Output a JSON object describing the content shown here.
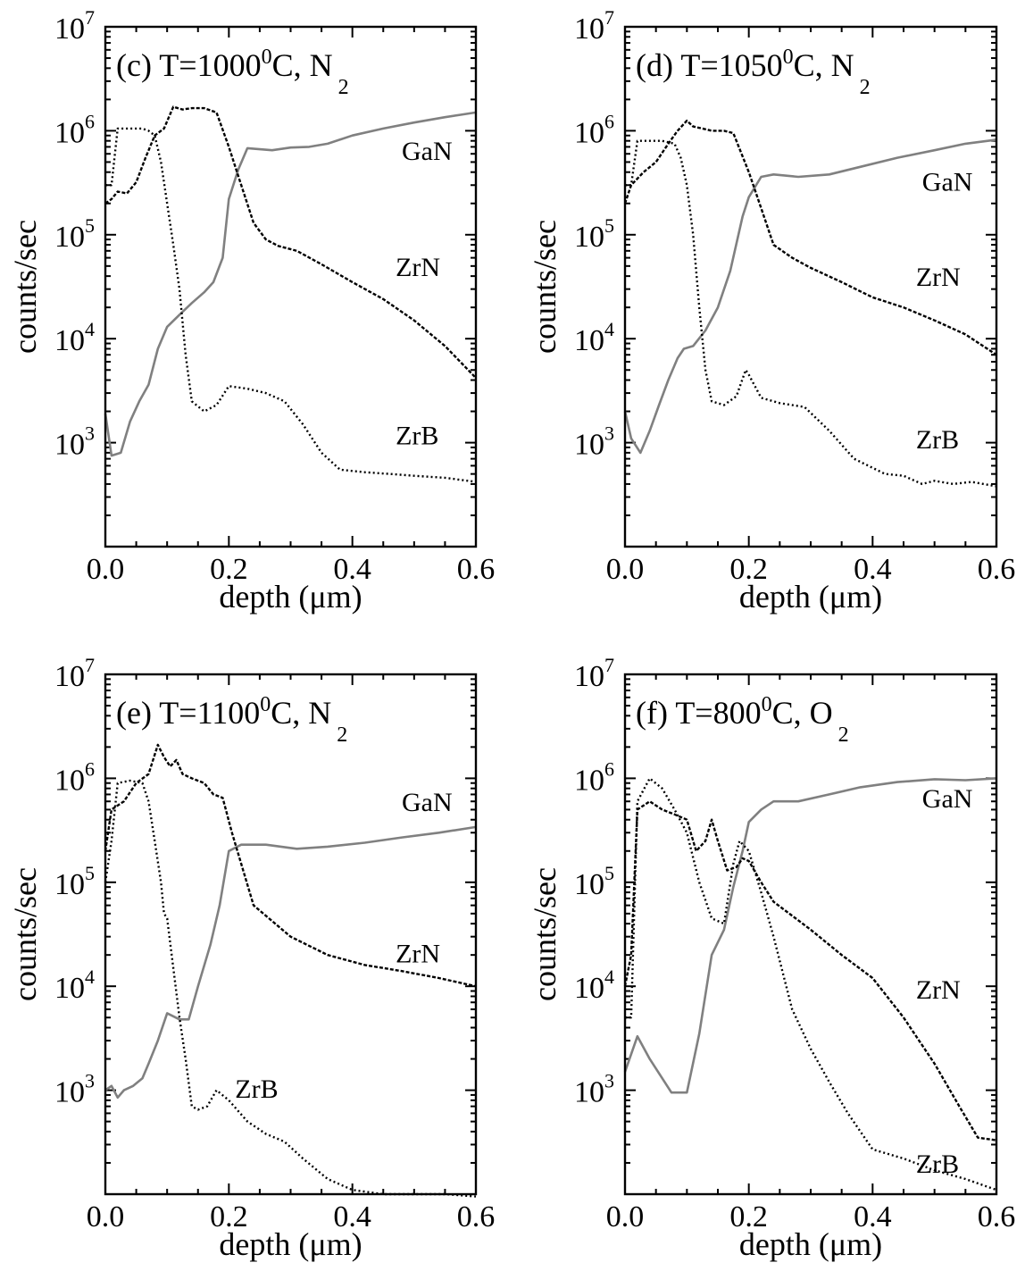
{
  "figure": {
    "ylabel": "counts/sec",
    "xlabel": "depth (μm)"
  },
  "chart_data": [
    {
      "type": "line",
      "panel": "(c)",
      "title": {
        "pre": "(c) T=1000",
        "sup": "0",
        "mid": "C, N",
        "sub": "2"
      },
      "xlabel": "depth (μm)",
      "ylabel": "counts/sec",
      "xlim": [
        0,
        0.6
      ],
      "ylim": [
        100,
        10000000
      ],
      "yscale": "log",
      "xticks": [
        "0.0",
        "0.2",
        "0.4",
        "0.6"
      ],
      "yticks": [
        {
          "base": "10",
          "exp": "3"
        },
        {
          "base": "10",
          "exp": "4"
        },
        {
          "base": "10",
          "exp": "5"
        },
        {
          "base": "10",
          "exp": "6"
        },
        {
          "base": "10",
          "exp": "7"
        }
      ],
      "series": [
        {
          "name": "GaN",
          "style": "solid",
          "color": "#808080",
          "x": [
            0,
            0.01,
            0.025,
            0.04,
            0.055,
            0.07,
            0.085,
            0.1,
            0.12,
            0.14,
            0.16,
            0.175,
            0.19,
            0.2,
            0.215,
            0.23,
            0.27,
            0.3,
            0.33,
            0.36,
            0.4,
            0.45,
            0.5,
            0.55,
            0.6
          ],
          "y": [
            1900,
            750,
            800,
            1600,
            2500,
            3600,
            8000,
            13000,
            17000,
            22000,
            28000,
            35000,
            60000,
            220000,
            420000,
            680000,
            650000,
            690000,
            700000,
            750000,
            900000,
            1050000,
            1200000,
            1350000,
            1500000
          ]
        },
        {
          "name": "ZrN",
          "style": "dashed",
          "color": "#000000",
          "x": [
            0,
            0.01,
            0.02,
            0.035,
            0.05,
            0.065,
            0.08,
            0.095,
            0.11,
            0.125,
            0.14,
            0.16,
            0.18,
            0.2,
            0.22,
            0.24,
            0.26,
            0.28,
            0.31,
            0.35,
            0.4,
            0.45,
            0.5,
            0.55,
            0.6
          ],
          "y": [
            200000,
            220000,
            260000,
            250000,
            320000,
            550000,
            900000,
            1050000,
            1700000,
            1600000,
            1650000,
            1650000,
            1500000,
            700000,
            300000,
            130000,
            90000,
            78000,
            70000,
            52000,
            35000,
            24000,
            15000,
            8500,
            4200
          ]
        },
        {
          "name": "ZrB",
          "style": "dotted",
          "color": "#000000",
          "x": [
            0,
            0.01,
            0.02,
            0.04,
            0.06,
            0.07,
            0.08,
            0.09,
            0.1,
            0.11,
            0.12,
            0.13,
            0.14,
            0.16,
            0.18,
            0.2,
            0.23,
            0.26,
            0.29,
            0.32,
            0.35,
            0.38,
            0.42,
            0.46,
            0.5,
            0.55,
            0.6
          ],
          "y": [
            300000,
            300000,
            1050000,
            1050000,
            1050000,
            1000000,
            900000,
            500000,
            200000,
            80000,
            30000,
            7000,
            2500,
            2000,
            2300,
            3500,
            3300,
            3000,
            2500,
            1500,
            800,
            550,
            520,
            500,
            480,
            460,
            420
          ]
        }
      ],
      "labels": [
        {
          "text": "GaN",
          "x": 0.48,
          "y": 650000
        },
        {
          "text": "ZrN",
          "x": 0.47,
          "y": 50000
        },
        {
          "text": "ZrB",
          "x": 0.47,
          "y": 1200
        }
      ]
    },
    {
      "type": "line",
      "panel": "(d)",
      "title": {
        "pre": "(d) T=1050",
        "sup": "0",
        "mid": "C, N",
        "sub": "2"
      },
      "xlabel": "depth (μm)",
      "ylabel": "counts/sec",
      "xlim": [
        0,
        0.6
      ],
      "ylim": [
        100,
        10000000
      ],
      "yscale": "log",
      "xticks": [
        "0.0",
        "0.2",
        "0.4",
        "0.6"
      ],
      "yticks": [
        {
          "base": "10",
          "exp": "3"
        },
        {
          "base": "10",
          "exp": "4"
        },
        {
          "base": "10",
          "exp": "5"
        },
        {
          "base": "10",
          "exp": "6"
        },
        {
          "base": "10",
          "exp": "7"
        }
      ],
      "series": [
        {
          "name": "GaN",
          "style": "solid",
          "color": "#808080",
          "x": [
            0,
            0.01,
            0.025,
            0.04,
            0.055,
            0.07,
            0.085,
            0.095,
            0.11,
            0.13,
            0.15,
            0.17,
            0.19,
            0.2,
            0.22,
            0.24,
            0.28,
            0.33,
            0.38,
            0.44,
            0.5,
            0.55,
            0.6
          ],
          "y": [
            2000,
            1100,
            800,
            1300,
            2300,
            4000,
            6500,
            8000,
            8500,
            12000,
            20000,
            45000,
            150000,
            230000,
            360000,
            380000,
            360000,
            380000,
            450000,
            550000,
            650000,
            750000,
            820000
          ]
        },
        {
          "name": "ZrN",
          "style": "dashed",
          "color": "#000000",
          "x": [
            0,
            0.01,
            0.03,
            0.05,
            0.07,
            0.085,
            0.1,
            0.11,
            0.125,
            0.14,
            0.16,
            0.175,
            0.2,
            0.22,
            0.24,
            0.27,
            0.3,
            0.35,
            0.4,
            0.45,
            0.5,
            0.55,
            0.6
          ],
          "y": [
            200000,
            300000,
            400000,
            500000,
            750000,
            1000000,
            1250000,
            1100000,
            1050000,
            1000000,
            1000000,
            950000,
            400000,
            180000,
            80000,
            60000,
            48000,
            35000,
            25000,
            20000,
            15000,
            11000,
            7000
          ]
        },
        {
          "name": "ZrB",
          "style": "dotted",
          "color": "#000000",
          "x": [
            0,
            0.01,
            0.02,
            0.04,
            0.06,
            0.08,
            0.09,
            0.1,
            0.11,
            0.12,
            0.13,
            0.14,
            0.16,
            0.18,
            0.195,
            0.2,
            0.22,
            0.25,
            0.29,
            0.33,
            0.37,
            0.42,
            0.45,
            0.48,
            0.5,
            0.53,
            0.56,
            0.6
          ],
          "y": [
            300000,
            300000,
            800000,
            800000,
            800000,
            750000,
            550000,
            300000,
            100000,
            20000,
            5000,
            2500,
            2300,
            2800,
            5000,
            4500,
            2700,
            2400,
            2200,
            1300,
            700,
            500,
            480,
            400,
            430,
            400,
            420,
            380
          ]
        }
      ],
      "labels": [
        {
          "text": "GaN",
          "x": 0.48,
          "y": 330000
        },
        {
          "text": "ZrN",
          "x": 0.47,
          "y": 40000
        },
        {
          "text": "ZrB",
          "x": 0.47,
          "y": 1100
        }
      ]
    },
    {
      "type": "line",
      "panel": "(e)",
      "title": {
        "pre": "(e)  T=1100",
        "sup": "0",
        "mid": "C, N",
        "sub": "2"
      },
      "xlabel": "depth (μm)",
      "ylabel": "counts/sec",
      "xlim": [
        0,
        0.6
      ],
      "ylim": [
        100,
        10000000
      ],
      "yscale": "log",
      "xticks": [
        "0.0",
        "0.2",
        "0.4",
        "0.6"
      ],
      "yticks": [
        {
          "base": "10",
          "exp": "3"
        },
        {
          "base": "10",
          "exp": "4"
        },
        {
          "base": "10",
          "exp": "5"
        },
        {
          "base": "10",
          "exp": "6"
        },
        {
          "base": "10",
          "exp": "7"
        }
      ],
      "series": [
        {
          "name": "GaN",
          "style": "solid",
          "color": "#808080",
          "x": [
            0,
            0.01,
            0.02,
            0.03,
            0.045,
            0.06,
            0.07,
            0.085,
            0.1,
            0.12,
            0.135,
            0.15,
            0.17,
            0.185,
            0.2,
            0.22,
            0.26,
            0.31,
            0.36,
            0.42,
            0.48,
            0.54,
            0.6
          ],
          "y": [
            1000,
            1100,
            850,
            1000,
            1100,
            1300,
            1800,
            3000,
            5500,
            4800,
            4800,
            10000,
            25000,
            60000,
            200000,
            230000,
            230000,
            210000,
            220000,
            240000,
            270000,
            300000,
            340000
          ]
        },
        {
          "name": "ZrN",
          "style": "dashed",
          "color": "#000000",
          "x": [
            0,
            0.01,
            0.03,
            0.05,
            0.07,
            0.085,
            0.095,
            0.105,
            0.115,
            0.125,
            0.14,
            0.16,
            0.175,
            0.19,
            0.205,
            0.24,
            0.3,
            0.36,
            0.42,
            0.48,
            0.54,
            0.6
          ],
          "y": [
            200000,
            500000,
            600000,
            900000,
            1100000,
            2100000,
            1600000,
            1300000,
            1500000,
            1100000,
            1000000,
            900000,
            700000,
            650000,
            300000,
            60000,
            30000,
            20000,
            16000,
            14000,
            12000,
            10000
          ]
        },
        {
          "name": "ZrB",
          "style": "dotted",
          "color": "#000000",
          "x": [
            0,
            0.01,
            0.02,
            0.04,
            0.06,
            0.07,
            0.08,
            0.09,
            0.095,
            0.1,
            0.11,
            0.12,
            0.13,
            0.14,
            0.15,
            0.165,
            0.18,
            0.2,
            0.23,
            0.26,
            0.29,
            0.32,
            0.36,
            0.4,
            0.45,
            0.5,
            0.55,
            0.6
          ],
          "y": [
            100000,
            250000,
            900000,
            950000,
            900000,
            600000,
            250000,
            100000,
            50000,
            45000,
            15000,
            5000,
            2000,
            700,
            650,
            700,
            1000,
            800,
            500,
            380,
            320,
            220,
            140,
            110,
            100,
            100,
            100,
            95
          ]
        }
      ],
      "labels": [
        {
          "text": "GaN",
          "x": 0.48,
          "y": 600000
        },
        {
          "text": "ZrN",
          "x": 0.47,
          "y": 21000
        },
        {
          "text": "ZrB",
          "x": 0.21,
          "y": 1050
        }
      ]
    },
    {
      "type": "line",
      "panel": "(f)",
      "title": {
        "pre": "(f) T=800",
        "sup": "0",
        "mid": "C, O",
        "sub": "2"
      },
      "xlabel": "depth (μm)",
      "ylabel": "counts/sec",
      "xlim": [
        0,
        0.6
      ],
      "ylim": [
        100,
        10000000
      ],
      "yscale": "log",
      "xticks": [
        "0.0",
        "0.2",
        "0.4",
        "0.6"
      ],
      "yticks": [
        {
          "base": "10",
          "exp": "3"
        },
        {
          "base": "10",
          "exp": "4"
        },
        {
          "base": "10",
          "exp": "5"
        },
        {
          "base": "10",
          "exp": "6"
        },
        {
          "base": "10",
          "exp": "7"
        }
      ],
      "series": [
        {
          "name": "GaN",
          "style": "solid",
          "color": "#808080",
          "x": [
            0,
            0.02,
            0.04,
            0.075,
            0.1,
            0.12,
            0.14,
            0.16,
            0.175,
            0.19,
            0.2,
            0.22,
            0.24,
            0.28,
            0.33,
            0.38,
            0.44,
            0.5,
            0.55,
            0.6
          ],
          "y": [
            1500,
            3300,
            2000,
            950,
            950,
            3500,
            20000,
            35000,
            90000,
            200000,
            380000,
            500000,
            600000,
            600000,
            700000,
            820000,
            920000,
            980000,
            960000,
            1000000
          ]
        },
        {
          "name": "ZrN",
          "style": "dashed",
          "color": "#000000",
          "x": [
            0,
            0.01,
            0.02,
            0.04,
            0.06,
            0.08,
            0.1,
            0.115,
            0.13,
            0.14,
            0.15,
            0.165,
            0.18,
            0.19,
            0.2,
            0.22,
            0.24,
            0.3,
            0.35,
            0.4,
            0.45,
            0.5,
            0.54,
            0.57,
            0.6
          ],
          "y": [
            10000,
            20000,
            500000,
            600000,
            500000,
            450000,
            400000,
            200000,
            250000,
            400000,
            250000,
            130000,
            140000,
            170000,
            160000,
            100000,
            65000,
            35000,
            20000,
            12000,
            5000,
            1800,
            700,
            350,
            330
          ]
        },
        {
          "name": "ZrB",
          "style": "dotted",
          "color": "#000000",
          "x": [
            0,
            0.01,
            0.02,
            0.04,
            0.06,
            0.08,
            0.1,
            0.12,
            0.14,
            0.16,
            0.175,
            0.185,
            0.2,
            0.22,
            0.24,
            0.27,
            0.3,
            0.33,
            0.36,
            0.4,
            0.45,
            0.5,
            0.55,
            0.6
          ],
          "y": [
            5000,
            5000,
            600000,
            1000000,
            800000,
            500000,
            300000,
            100000,
            45000,
            40000,
            150000,
            250000,
            200000,
            80000,
            30000,
            6000,
            2500,
            1200,
            600,
            270,
            220,
            170,
            140,
            110
          ]
        }
      ],
      "labels": [
        {
          "text": "GaN",
          "x": 0.48,
          "y": 650000
        },
        {
          "text": "ZrN",
          "x": 0.47,
          "y": 9500
        },
        {
          "text": "ZrB",
          "x": 0.47,
          "y": 200
        }
      ]
    }
  ]
}
